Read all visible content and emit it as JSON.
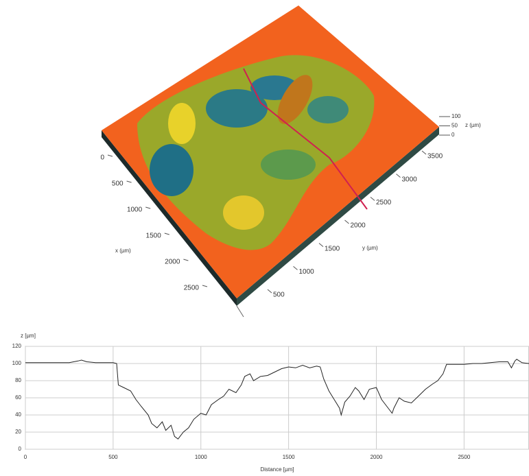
{
  "chart_data": [
    {
      "type": "surface3d",
      "x_label": "x (µm)",
      "y_label": "y (µm)",
      "z_label": "z (µm)",
      "xticks": [
        0,
        500,
        1000,
        1500,
        2000,
        2500
      ],
      "yticks": [
        500,
        1000,
        1500,
        2000,
        2500,
        3000,
        3500
      ],
      "zticks": [
        0,
        50,
        100
      ]
    },
    {
      "type": "line",
      "x_label": "Distance [µm]",
      "y_label": "z [µm]",
      "xlim": [
        0,
        2870
      ],
      "ylim": [
        0,
        120
      ],
      "xticks": [
        0,
        500,
        1000,
        1500,
        2000,
        2500
      ],
      "yticks": [
        0,
        20,
        40,
        60,
        80,
        100,
        120
      ],
      "grid": true,
      "color": "#222222",
      "x": [
        0,
        50,
        100,
        150,
        200,
        250,
        300,
        320,
        350,
        400,
        450,
        500,
        520,
        530,
        560,
        600,
        630,
        660,
        700,
        720,
        750,
        780,
        800,
        830,
        850,
        870,
        900,
        930,
        960,
        1000,
        1030,
        1060,
        1100,
        1130,
        1160,
        1200,
        1230,
        1250,
        1280,
        1300,
        1340,
        1380,
        1420,
        1460,
        1500,
        1540,
        1580,
        1620,
        1660,
        1680,
        1700,
        1730,
        1760,
        1790,
        1800,
        1820,
        1850,
        1880,
        1900,
        1930,
        1960,
        2000,
        2030,
        2060,
        2090,
        2100,
        2130,
        2160,
        2200,
        2240,
        2280,
        2320,
        2350,
        2380,
        2400,
        2450,
        2500,
        2550,
        2600,
        2650,
        2700,
        2750,
        2770,
        2790,
        2800,
        2830,
        2870
      ],
      "values": [
        101,
        101,
        101,
        101,
        101,
        101,
        103,
        104,
        102,
        101,
        101,
        101,
        100,
        75,
        72,
        68,
        58,
        50,
        40,
        30,
        25,
        32,
        22,
        28,
        15,
        12,
        20,
        25,
        35,
        42,
        40,
        52,
        58,
        62,
        70,
        66,
        75,
        85,
        88,
        80,
        85,
        86,
        90,
        94,
        96,
        95,
        98,
        95,
        97,
        96,
        82,
        68,
        58,
        48,
        40,
        55,
        62,
        72,
        68,
        58,
        70,
        72,
        58,
        50,
        42,
        48,
        60,
        56,
        54,
        62,
        70,
        76,
        80,
        88,
        99,
        99,
        99,
        100,
        100,
        101,
        102,
        102,
        95,
        103,
        105,
        101,
        100
      ]
    }
  ]
}
